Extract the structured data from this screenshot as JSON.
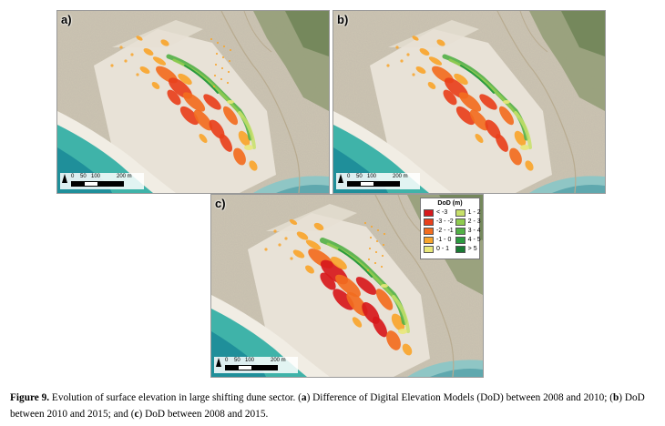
{
  "panels": [
    {
      "label": "a)",
      "scale": {
        "ticks": [
          "0",
          "50",
          "100",
          "200 m"
        ]
      }
    },
    {
      "label": "b)",
      "scale": {
        "ticks": [
          "0",
          "50",
          "100",
          "200 m"
        ]
      }
    },
    {
      "label": "c)",
      "scale": {
        "ticks": [
          "0",
          "50",
          "100",
          "200 m"
        ]
      }
    }
  ],
  "legend": {
    "title": "DoD (m)",
    "items": [
      {
        "label": "< -3",
        "color": "#d7191c"
      },
      {
        "label": "1 - 2",
        "color": "#c7e06a"
      },
      {
        "label": "-3 - -2",
        "color": "#e8401c"
      },
      {
        "label": "2 - 3",
        "color": "#8fcb4f"
      },
      {
        "label": "-2 - -1",
        "color": "#f26d1f"
      },
      {
        "label": "3 - 4",
        "color": "#52b046"
      },
      {
        "label": "-1 - 0",
        "color": "#f8a52c"
      },
      {
        "label": "4 - 5",
        "color": "#2b9a3f"
      },
      {
        "label": "0 - 1",
        "color": "#e9e87a"
      },
      {
        "label": "> 5",
        "color": "#1a7a34"
      }
    ]
  },
  "caption": {
    "figure_label": "Figure 9.",
    "intro": " Evolution of surface elevation in large shifting dune sector. (",
    "a": "a",
    "a_text": ") Difference of Digital Elevation Models (DoD) between 2008 and 2010; (",
    "b": "b",
    "b_text": ") DoD between 2010 and 2015; and (",
    "c": "c",
    "c_text": ") DoD between 2008 and 2015."
  }
}
